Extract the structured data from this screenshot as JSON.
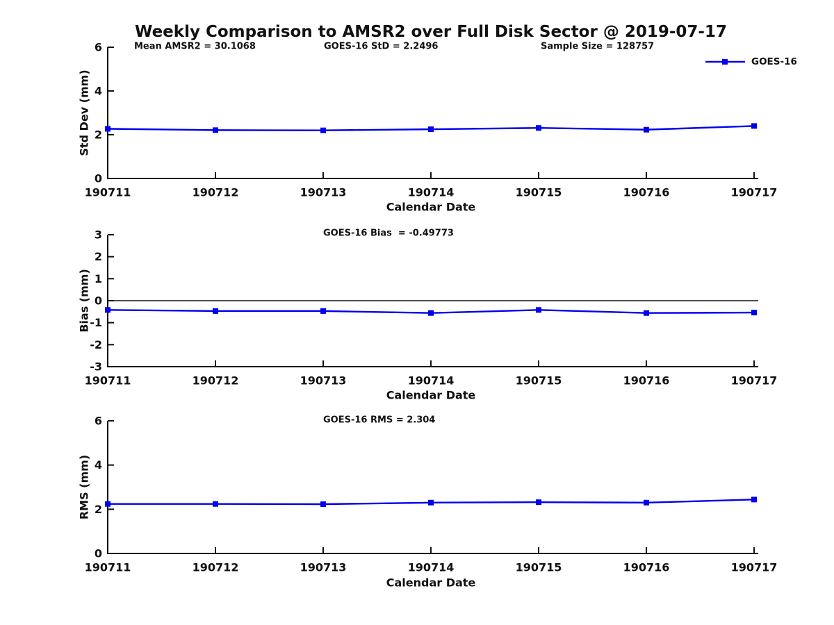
{
  "title": "Weekly Comparison to AMSR2 over Full Disk Sector @ 2019-07-17",
  "colors": {
    "line": "#0000ee",
    "axis": "#111111",
    "zero_line": "#111111",
    "background": "#ffffff",
    "text": "#111111"
  },
  "legend": {
    "label": "GOES-16",
    "position": "top-right"
  },
  "x_axis_label": "Calendar Date",
  "chart_data": [
    {
      "type": "line",
      "name": "std-dev-plot",
      "x": [
        "190711",
        "190712",
        "190713",
        "190714",
        "190715",
        "190716",
        "190717"
      ],
      "series": [
        {
          "name": "GOES-16",
          "values": [
            2.27,
            2.21,
            2.2,
            2.25,
            2.31,
            2.23,
            2.4
          ]
        }
      ],
      "ylim": [
        0,
        6
      ],
      "yticks": [
        0,
        2,
        4,
        6
      ],
      "ylabel": "Std Dev (mm)",
      "xlabel": "Calendar Date",
      "grid": false,
      "marker": "square",
      "show_legend": true,
      "annotations": [
        {
          "text": "Mean AMSR2 = 30.1068",
          "x": 193
        },
        {
          "text": "GOES-16 StD = 2.2496",
          "x": 466
        },
        {
          "text": "Sample Size = 128757",
          "x": 778
        }
      ]
    },
    {
      "type": "line",
      "name": "bias-plot",
      "x": [
        "190711",
        "190712",
        "190713",
        "190714",
        "190715",
        "190716",
        "190717"
      ],
      "series": [
        {
          "name": "GOES-16",
          "values": [
            -0.42,
            -0.47,
            -0.47,
            -0.56,
            -0.42,
            -0.56,
            -0.54
          ]
        }
      ],
      "ylim": [
        -3,
        3
      ],
      "yticks": [
        3,
        2,
        1,
        0,
        -1,
        -2,
        -3
      ],
      "ylabel": "Bias (mm)",
      "xlabel": "Calendar Date",
      "grid": false,
      "marker": "square",
      "zero_line": true,
      "show_legend": false,
      "annotations": [
        {
          "text": "GOES-16 Bias  = -0.49773",
          "x": 465
        }
      ]
    },
    {
      "type": "line",
      "name": "rms-plot",
      "x": [
        "190711",
        "190712",
        "190713",
        "190714",
        "190715",
        "190716",
        "190717"
      ],
      "series": [
        {
          "name": "GOES-16",
          "values": [
            2.24,
            2.24,
            2.23,
            2.3,
            2.32,
            2.3,
            2.44
          ]
        }
      ],
      "ylim": [
        0,
        6
      ],
      "yticks": [
        0,
        2,
        4,
        6
      ],
      "ylabel": "RMS (mm)",
      "xlabel": "Calendar Date",
      "grid": false,
      "marker": "square",
      "show_legend": false,
      "annotations": [
        {
          "text": "GOES-16 RMS = 2.304",
          "x": 465
        }
      ]
    }
  ]
}
